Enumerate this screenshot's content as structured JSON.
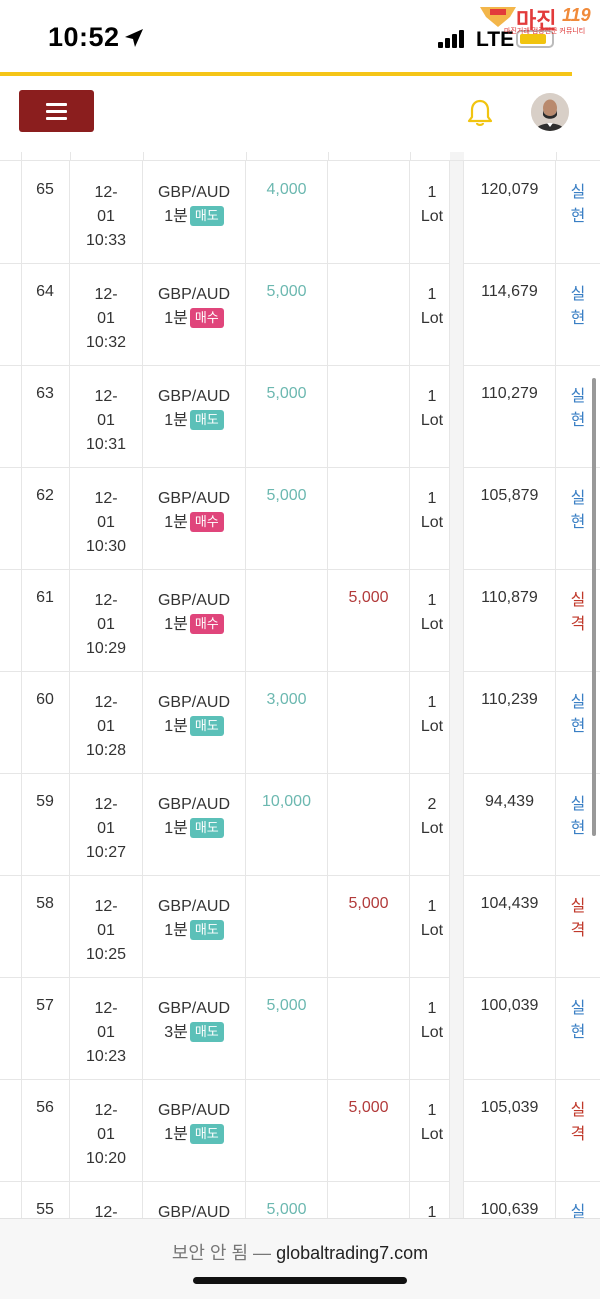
{
  "status": {
    "time": "10:52",
    "network": "LTE"
  },
  "watermark": {
    "brand": "마진",
    "sub": "마진거래 검증전문 커뮤니티"
  },
  "site": {
    "insecure_label": "보안 안 됨 —",
    "domain": "globaltrading7.com"
  },
  "colors": {
    "header_button": "#8b1e1e",
    "accent_line": "#f5c518",
    "profit": "#6cb8b0",
    "loss": "#b23b3b",
    "sell_badge": "#5bc0b8",
    "buy_badge": "#e0457b"
  },
  "rows": [
    {
      "no": "65",
      "date1": "12-",
      "date2": "01",
      "time": "10:33",
      "pair": "GBP/AUD",
      "period": "1분",
      "side": "매도",
      "side_type": "sell",
      "profit": "4,000",
      "loss": "",
      "lot_n": "1",
      "lot_u": "Lot",
      "balance": "120,079",
      "res1": "실",
      "res2": "현",
      "res_type": "real"
    },
    {
      "no": "64",
      "date1": "12-",
      "date2": "01",
      "time": "10:32",
      "pair": "GBP/AUD",
      "period": "1분",
      "side": "매수",
      "side_type": "buy",
      "profit": "5,000",
      "loss": "",
      "lot_n": "1",
      "lot_u": "Lot",
      "balance": "114,679",
      "res1": "실",
      "res2": "현",
      "res_type": "real"
    },
    {
      "no": "63",
      "date1": "12-",
      "date2": "01",
      "time": "10:31",
      "pair": "GBP/AUD",
      "period": "1분",
      "side": "매도",
      "side_type": "sell",
      "profit": "5,000",
      "loss": "",
      "lot_n": "1",
      "lot_u": "Lot",
      "balance": "110,279",
      "res1": "실",
      "res2": "현",
      "res_type": "real"
    },
    {
      "no": "62",
      "date1": "12-",
      "date2": "01",
      "time": "10:30",
      "pair": "GBP/AUD",
      "period": "1분",
      "side": "매수",
      "side_type": "buy",
      "profit": "5,000",
      "loss": "",
      "lot_n": "1",
      "lot_u": "Lot",
      "balance": "105,879",
      "res1": "실",
      "res2": "현",
      "res_type": "real"
    },
    {
      "no": "61",
      "date1": "12-",
      "date2": "01",
      "time": "10:29",
      "pair": "GBP/AUD",
      "period": "1분",
      "side": "매수",
      "side_type": "buy",
      "profit": "",
      "loss": "5,000",
      "lot_n": "1",
      "lot_u": "Lot",
      "balance": "110,879",
      "res1": "실",
      "res2": "격",
      "res_type": "fail"
    },
    {
      "no": "60",
      "date1": "12-",
      "date2": "01",
      "time": "10:28",
      "pair": "GBP/AUD",
      "period": "1분",
      "side": "매도",
      "side_type": "sell",
      "profit": "3,000",
      "loss": "",
      "lot_n": "1",
      "lot_u": "Lot",
      "balance": "110,239",
      "res1": "실",
      "res2": "현",
      "res_type": "real"
    },
    {
      "no": "59",
      "date1": "12-",
      "date2": "01",
      "time": "10:27",
      "pair": "GBP/AUD",
      "period": "1분",
      "side": "매도",
      "side_type": "sell",
      "profit": "10,000",
      "loss": "",
      "lot_n": "2",
      "lot_u": "Lot",
      "balance": "94,439",
      "res1": "실",
      "res2": "현",
      "res_type": "real"
    },
    {
      "no": "58",
      "date1": "12-",
      "date2": "01",
      "time": "10:25",
      "pair": "GBP/AUD",
      "period": "1분",
      "side": "매도",
      "side_type": "sell",
      "profit": "",
      "loss": "5,000",
      "lot_n": "1",
      "lot_u": "Lot",
      "balance": "104,439",
      "res1": "실",
      "res2": "격",
      "res_type": "fail"
    },
    {
      "no": "57",
      "date1": "12-",
      "date2": "01",
      "time": "10:23",
      "pair": "GBP/AUD",
      "period": "3분",
      "side": "매도",
      "side_type": "sell",
      "profit": "5,000",
      "loss": "",
      "lot_n": "1",
      "lot_u": "Lot",
      "balance": "100,039",
      "res1": "실",
      "res2": "현",
      "res_type": "real"
    },
    {
      "no": "56",
      "date1": "12-",
      "date2": "01",
      "time": "10:20",
      "pair": "GBP/AUD",
      "period": "1분",
      "side": "매도",
      "side_type": "sell",
      "profit": "",
      "loss": "5,000",
      "lot_n": "1",
      "lot_u": "Lot",
      "balance": "105,039",
      "res1": "실",
      "res2": "격",
      "res_type": "fail"
    },
    {
      "no": "55",
      "date1": "12-",
      "date2": "",
      "time": "",
      "pair": "GBP/AUD",
      "period": "",
      "side": "",
      "side_type": "none",
      "profit": "5,000",
      "loss": "",
      "lot_n": "1",
      "lot_u": "",
      "balance": "100,639",
      "res1": "실",
      "res2": "",
      "res_type": "real"
    }
  ]
}
